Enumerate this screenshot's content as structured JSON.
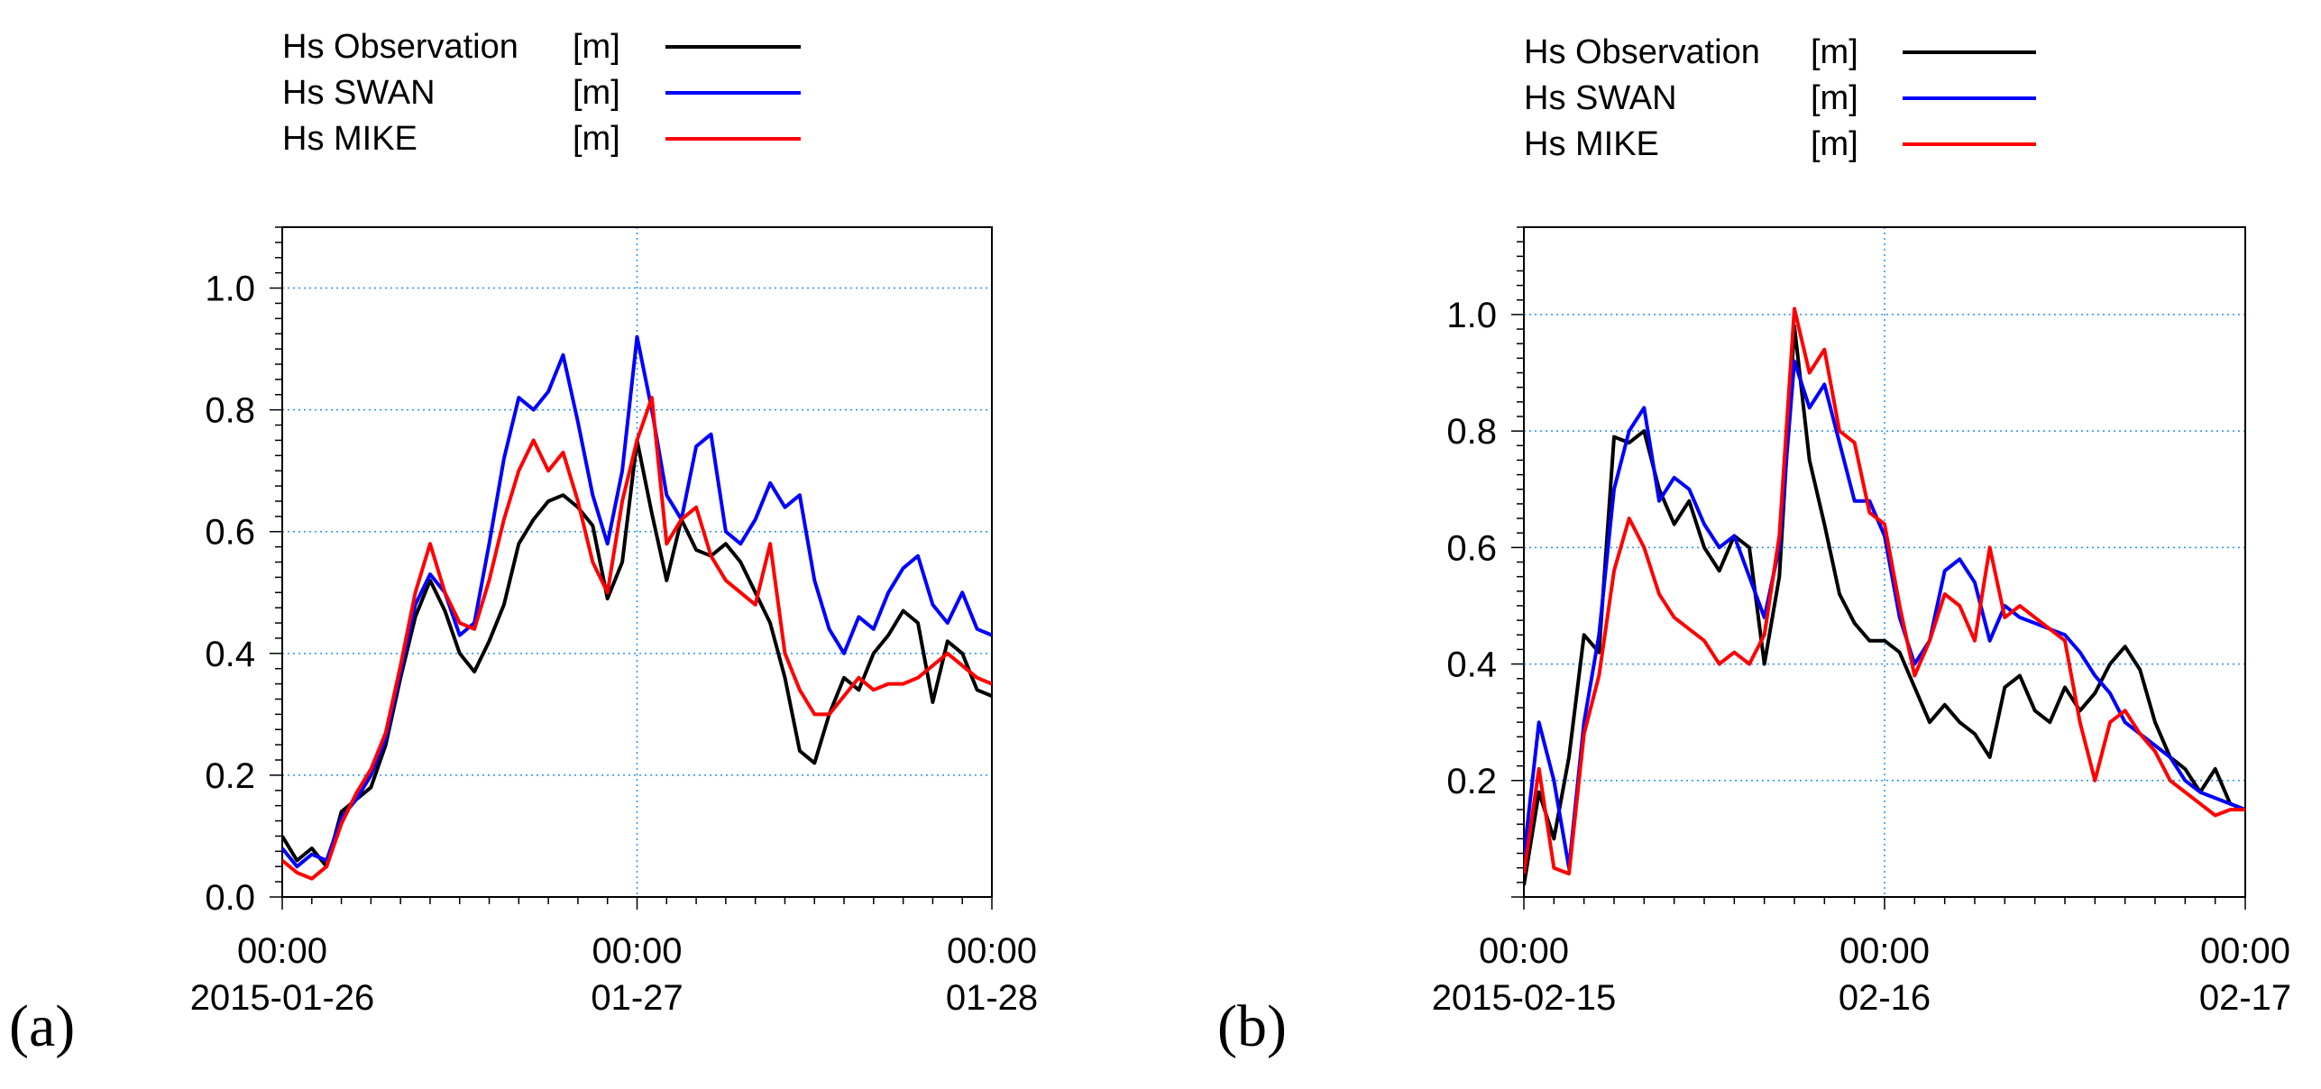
{
  "colors": {
    "observation": "#000000",
    "swan": "#0000ff",
    "mike": "#ff0000",
    "grid": "#1e90ff",
    "frame": "#000000"
  },
  "chart_data": [
    {
      "type": "line",
      "panel_label": "(a)",
      "legend": [
        {
          "name": "Hs Observation",
          "unit": "[m]"
        },
        {
          "name": "Hs SWAN",
          "unit": "[m]"
        },
        {
          "name": "Hs MIKE",
          "unit": "[m]"
        }
      ],
      "legend_placement": "top",
      "grid": true,
      "xlim": [
        "2015-01-26 00:00",
        "2015-01-28 00:00"
      ],
      "ylim": [
        0,
        1.1
      ],
      "x_ticks": [
        {
          "time": "00:00",
          "date": "2015-01-26"
        },
        {
          "time": "00:00",
          "date": "01-27"
        },
        {
          "time": "00:00",
          "date": "01-28"
        }
      ],
      "y_ticks": [
        "0.0",
        "0.2",
        "0.4",
        "0.6",
        "0.8",
        "1.0"
      ],
      "series": [
        {
          "name": "Hs Observation",
          "x_hours": [
            0,
            1,
            2,
            3,
            4,
            5,
            6,
            7,
            8,
            9,
            10,
            11,
            12,
            13,
            14,
            15,
            16,
            17,
            18,
            19,
            20,
            21,
            22,
            23,
            24,
            25,
            26,
            27,
            28,
            29,
            30,
            31,
            32,
            33,
            34,
            35,
            36,
            37,
            38,
            39,
            40,
            41,
            42,
            43,
            44,
            45,
            46,
            47,
            48
          ],
          "values": [
            0.1,
            0.06,
            0.08,
            0.05,
            0.14,
            0.16,
            0.18,
            0.25,
            0.36,
            0.46,
            0.52,
            0.47,
            0.4,
            0.37,
            0.42,
            0.48,
            0.58,
            0.62,
            0.65,
            0.66,
            0.64,
            0.61,
            0.49,
            0.55,
            0.75,
            0.63,
            0.52,
            0.62,
            0.57,
            0.56,
            0.58,
            0.55,
            0.5,
            0.45,
            0.36,
            0.24,
            0.22,
            0.3,
            0.36,
            0.34,
            0.4,
            0.43,
            0.47,
            0.45,
            0.32,
            0.42,
            0.4,
            0.34,
            0.33
          ]
        },
        {
          "name": "Hs SWAN",
          "x_hours": [
            0,
            1,
            2,
            3,
            4,
            5,
            6,
            7,
            8,
            9,
            10,
            11,
            12,
            13,
            14,
            15,
            16,
            17,
            18,
            19,
            20,
            21,
            22,
            23,
            24,
            25,
            26,
            27,
            28,
            29,
            30,
            31,
            32,
            33,
            34,
            35,
            36,
            37,
            38,
            39,
            40,
            41,
            42,
            43,
            44,
            45,
            46,
            47,
            48
          ],
          "values": [
            0.08,
            0.05,
            0.07,
            0.06,
            0.13,
            0.16,
            0.2,
            0.26,
            0.37,
            0.48,
            0.53,
            0.5,
            0.43,
            0.45,
            0.58,
            0.72,
            0.82,
            0.8,
            0.83,
            0.89,
            0.78,
            0.66,
            0.58,
            0.7,
            0.92,
            0.8,
            0.66,
            0.62,
            0.74,
            0.76,
            0.6,
            0.58,
            0.62,
            0.68,
            0.64,
            0.66,
            0.52,
            0.44,
            0.4,
            0.46,
            0.44,
            0.5,
            0.54,
            0.56,
            0.48,
            0.45,
            0.5,
            0.44,
            0.43
          ]
        },
        {
          "name": "Hs MIKE",
          "x_hours": [
            0,
            1,
            2,
            3,
            4,
            5,
            6,
            7,
            8,
            9,
            10,
            11,
            12,
            13,
            14,
            15,
            16,
            17,
            18,
            19,
            20,
            21,
            22,
            23,
            24,
            25,
            26,
            27,
            28,
            29,
            30,
            31,
            32,
            33,
            34,
            35,
            36,
            37,
            38,
            39,
            40,
            41,
            42,
            43,
            44,
            45,
            46,
            47,
            48
          ],
          "values": [
            0.06,
            0.04,
            0.03,
            0.05,
            0.12,
            0.17,
            0.21,
            0.27,
            0.38,
            0.5,
            0.58,
            0.5,
            0.45,
            0.44,
            0.52,
            0.62,
            0.7,
            0.75,
            0.7,
            0.73,
            0.65,
            0.55,
            0.5,
            0.65,
            0.75,
            0.82,
            0.58,
            0.62,
            0.64,
            0.56,
            0.52,
            0.5,
            0.48,
            0.58,
            0.4,
            0.34,
            0.3,
            0.3,
            0.33,
            0.36,
            0.34,
            0.35,
            0.35,
            0.36,
            0.38,
            0.4,
            0.38,
            0.36,
            0.35
          ]
        }
      ]
    },
    {
      "type": "line",
      "panel_label": "(b)",
      "legend": [
        {
          "name": "Hs Observation",
          "unit": "[m]"
        },
        {
          "name": "Hs SWAN",
          "unit": "[m]"
        },
        {
          "name": "Hs MIKE",
          "unit": "[m]"
        }
      ],
      "legend_placement": "top",
      "grid": true,
      "xlim": [
        "2015-02-15 00:00",
        "2015-02-17 00:00"
      ],
      "ylim": [
        0,
        1.15
      ],
      "x_ticks": [
        {
          "time": "00:00",
          "date": "2015-02-15"
        },
        {
          "time": "00:00",
          "date": "02-16"
        },
        {
          "time": "00:00",
          "date": "02-17"
        }
      ],
      "y_ticks": [
        "0.2",
        "0.4",
        "0.6",
        "0.8",
        "1.0"
      ],
      "series": [
        {
          "name": "Hs Observation",
          "x_hours": [
            0,
            1,
            2,
            3,
            4,
            5,
            6,
            7,
            8,
            9,
            10,
            11,
            12,
            13,
            14,
            15,
            16,
            17,
            18,
            19,
            20,
            21,
            22,
            23,
            24,
            25,
            26,
            27,
            28,
            29,
            30,
            31,
            32,
            33,
            34,
            35,
            36,
            37,
            38,
            39,
            40,
            41,
            42,
            43,
            44,
            45,
            46,
            47,
            48
          ],
          "values": [
            0.02,
            0.18,
            0.1,
            0.24,
            0.45,
            0.42,
            0.79,
            0.78,
            0.8,
            0.7,
            0.64,
            0.68,
            0.6,
            0.56,
            0.62,
            0.6,
            0.4,
            0.55,
            0.98,
            0.75,
            0.64,
            0.52,
            0.47,
            0.44,
            0.44,
            0.42,
            0.36,
            0.3,
            0.33,
            0.3,
            0.28,
            0.24,
            0.36,
            0.38,
            0.32,
            0.3,
            0.36,
            0.32,
            0.35,
            0.4,
            0.43,
            0.39,
            0.3,
            0.24,
            0.22,
            0.18,
            0.22,
            0.16,
            0.15
          ]
        },
        {
          "name": "Hs SWAN",
          "x_hours": [
            0,
            1,
            2,
            3,
            4,
            5,
            6,
            7,
            8,
            9,
            10,
            11,
            12,
            13,
            14,
            15,
            16,
            17,
            18,
            19,
            20,
            21,
            22,
            23,
            24,
            25,
            26,
            27,
            28,
            29,
            30,
            31,
            32,
            33,
            34,
            35,
            36,
            37,
            38,
            39,
            40,
            41,
            42,
            43,
            44,
            45,
            46,
            47,
            48
          ],
          "values": [
            0.07,
            0.3,
            0.2,
            0.05,
            0.3,
            0.45,
            0.7,
            0.8,
            0.84,
            0.68,
            0.72,
            0.7,
            0.64,
            0.6,
            0.62,
            0.55,
            0.48,
            0.6,
            0.92,
            0.84,
            0.88,
            0.78,
            0.68,
            0.68,
            0.62,
            0.48,
            0.4,
            0.44,
            0.56,
            0.58,
            0.54,
            0.44,
            0.5,
            0.48,
            0.47,
            0.46,
            0.45,
            0.42,
            0.38,
            0.35,
            0.3,
            0.28,
            0.26,
            0.24,
            0.2,
            0.18,
            0.17,
            0.16,
            0.15
          ]
        },
        {
          "name": "Hs MIKE",
          "x_hours": [
            0,
            1,
            2,
            3,
            4,
            5,
            6,
            7,
            8,
            9,
            10,
            11,
            12,
            13,
            14,
            15,
            16,
            17,
            18,
            19,
            20,
            21,
            22,
            23,
            24,
            25,
            26,
            27,
            28,
            29,
            30,
            31,
            32,
            33,
            34,
            35,
            36,
            37,
            38,
            39,
            40,
            41,
            42,
            43,
            44,
            45,
            46,
            47,
            48
          ],
          "values": [
            0.04,
            0.22,
            0.05,
            0.04,
            0.28,
            0.38,
            0.56,
            0.65,
            0.6,
            0.52,
            0.48,
            0.46,
            0.44,
            0.4,
            0.42,
            0.4,
            0.45,
            0.62,
            1.01,
            0.9,
            0.94,
            0.8,
            0.78,
            0.66,
            0.64,
            0.5,
            0.38,
            0.44,
            0.52,
            0.5,
            0.44,
            0.6,
            0.48,
            0.5,
            0.48,
            0.46,
            0.44,
            0.3,
            0.2,
            0.3,
            0.32,
            0.28,
            0.25,
            0.2,
            0.18,
            0.16,
            0.14,
            0.15,
            0.15
          ]
        }
      ]
    }
  ]
}
